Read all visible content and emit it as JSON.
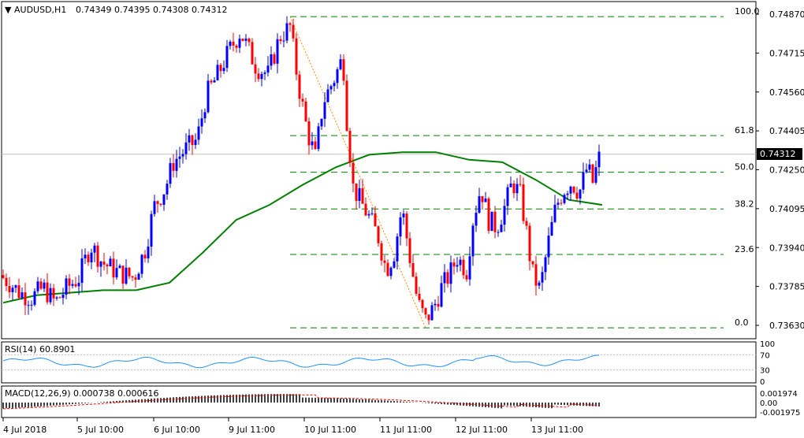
{
  "header": {
    "arrow": "▼",
    "symbol": "AUDUSD,H1",
    "ohlc": "0.74349 0.74395 0.74308 0.74312"
  },
  "price_axis": {
    "ticks": [
      "0.74870",
      "0.74715",
      "0.74560",
      "0.74405",
      "0.74250",
      "0.74095",
      "0.73940",
      "0.73785",
      "0.73630"
    ],
    "current_price": "0.74312"
  },
  "fibonacci": {
    "levels": [
      "100.0",
      "61.8",
      "50.0",
      "38.2",
      "23.6",
      "0.0"
    ]
  },
  "time_axis": {
    "labels": [
      "4 Jul 2018",
      "5 Jul 10:00",
      "6 Jul 10:00",
      "9 Jul 11:00",
      "10 Jul 11:00",
      "11 Jul 11:00",
      "12 Jul 11:00",
      "13 Jul 11:00"
    ]
  },
  "rsi": {
    "label": "RSI(14) 60.8901",
    "ticks": [
      "100",
      "70",
      "30",
      "0"
    ]
  },
  "macd": {
    "label": "MACD(12,26,9) 0.000738 0.000616",
    "ticks": [
      "0.001974",
      "0.00",
      "-0.001975"
    ]
  },
  "colors": {
    "bull": "#0000ff",
    "bear": "#ff0000",
    "ma": "#008000",
    "grid_dash": "#008000",
    "fib_line": "#ff8c00",
    "rsi_line": "#1e90ff"
  },
  "chart_data": {
    "type": "candlestick",
    "symbol": "AUDUSD",
    "timeframe": "H1",
    "ylim": [
      0.7358,
      0.7492
    ],
    "ma_series": [
      0.7372,
      0.7375,
      0.7376,
      0.7377,
      0.7377,
      0.738,
      0.7392,
      0.7405,
      0.7411,
      0.7419,
      0.7426,
      0.7431,
      0.7432,
      0.7432,
      0.7429,
      0.7428,
      0.7421,
      0.7413,
      0.7411
    ],
    "fib_high": 0.7486,
    "fib_low": 0.7362,
    "last_price": 0.74312
  }
}
